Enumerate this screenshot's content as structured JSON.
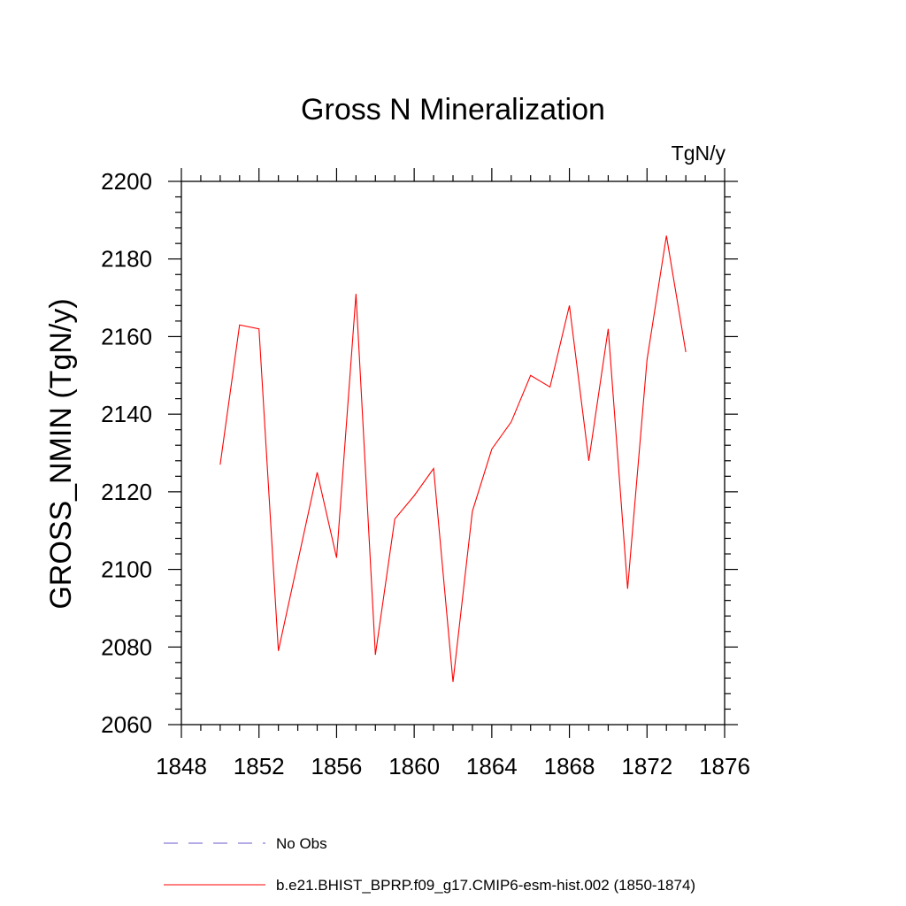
{
  "chart_data": {
    "type": "line",
    "title": "Gross N Mineralization",
    "units_label": "TgN/y",
    "ylabel": "GROSS_NMIN  (TgN/y)",
    "xlabel": "",
    "xlim": [
      1848,
      1876
    ],
    "ylim": [
      2060,
      2200
    ],
    "x_major_ticks": [
      1848,
      1852,
      1856,
      1860,
      1864,
      1868,
      1872,
      1876
    ],
    "x_minor_step": 1,
    "y_major_ticks": [
      2060,
      2080,
      2100,
      2120,
      2140,
      2160,
      2180,
      2200
    ],
    "y_minor_step": 4,
    "grid": false,
    "legend_placement": "bottom",
    "x": [
      1850,
      1851,
      1852,
      1853,
      1854,
      1855,
      1856,
      1857,
      1858,
      1859,
      1860,
      1861,
      1862,
      1863,
      1864,
      1865,
      1866,
      1867,
      1868,
      1869,
      1870,
      1871,
      1872,
      1873,
      1874
    ],
    "series": [
      {
        "name": "b.e21.BHIST_BPRP.f09_g17.CMIP6-esm-hist.002 (1850-1874)",
        "color": "#ff0000",
        "style": "solid",
        "values": [
          2127,
          2163,
          2162,
          2079,
          2102,
          2125,
          2103,
          2171,
          2078,
          2113,
          2119,
          2126,
          2071,
          2115,
          2131,
          2138,
          2150,
          2147,
          2168,
          2128,
          2162,
          2095,
          2154,
          2186,
          2156
        ]
      }
    ],
    "legend": [
      {
        "label": "No Obs",
        "color": "#6a5acd",
        "style": "dashed"
      },
      {
        "label": "b.e21.BHIST_BPRP.f09_g17.CMIP6-esm-hist.002 (1850-1874)",
        "color": "#ff0000",
        "style": "solid"
      }
    ]
  }
}
